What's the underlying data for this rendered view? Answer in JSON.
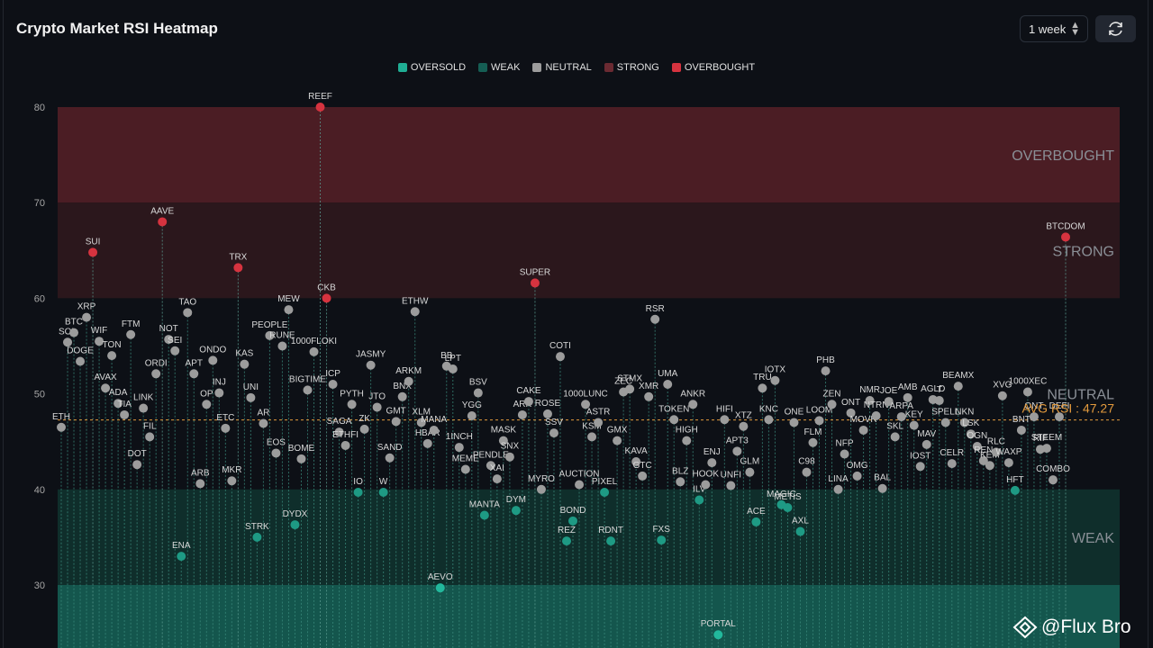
{
  "header": {
    "title": "Crypto Market RSI Heatmap",
    "period_value": "1 week"
  },
  "colors": {
    "background": "#0d1016",
    "oversold": "#1fae94",
    "weak": "#155e54",
    "neutral": "#9c9c9c",
    "strong": "#6b2a32",
    "overbought": "#d6333f",
    "avg_line": "#e39a3d"
  },
  "legend": [
    {
      "label": "OVERSOLD",
      "color": "#1fae94"
    },
    {
      "label": "WEAK",
      "color": "#155e54"
    },
    {
      "label": "NEUTRAL",
      "color": "#9c9c9c"
    },
    {
      "label": "STRONG",
      "color": "#6b2a32"
    },
    {
      "label": "OVERBOUGHT",
      "color": "#d6333f"
    }
  ],
  "watermark": "@Flux Bro",
  "chart_data": {
    "type": "scatter",
    "ylim": [
      24,
      82
    ],
    "y_ticks": [
      30,
      40,
      50,
      60,
      70,
      80
    ],
    "grid": false,
    "legend_position": "top-center",
    "zones": [
      {
        "label": "OVERBOUGHT",
        "from": 70,
        "to": 80
      },
      {
        "label": "STRONG",
        "from": 60,
        "to": 70
      },
      {
        "label": "NEUTRAL",
        "from": 40,
        "to": 60
      },
      {
        "label": "WEAK",
        "from": 30,
        "to": 40
      },
      {
        "label": "OVERSOLD",
        "from": 20,
        "to": 30
      }
    ],
    "avg_label": "AVG RSI : 47.27",
    "avg_value": 47.27,
    "points": [
      {
        "label": "ETH",
        "x": 1,
        "y": 46.5
      },
      {
        "label": "SOL",
        "x": 2,
        "y": 55.4
      },
      {
        "label": "BTC",
        "x": 3,
        "y": 56.4
      },
      {
        "label": "DOGE",
        "x": 4,
        "y": 53.4
      },
      {
        "label": "XRP",
        "x": 5,
        "y": 58.0
      },
      {
        "label": "SUI",
        "x": 6,
        "y": 64.8
      },
      {
        "label": "WIF",
        "x": 7,
        "y": 55.5
      },
      {
        "label": "AVAX",
        "x": 8,
        "y": 50.6
      },
      {
        "label": "TON",
        "x": 9,
        "y": 54.0
      },
      {
        "label": "ADA",
        "x": 10,
        "y": 49.0
      },
      {
        "label": "TIA",
        "x": 11,
        "y": 47.8
      },
      {
        "label": "FTM",
        "x": 12,
        "y": 56.2
      },
      {
        "label": "DOT",
        "x": 13,
        "y": 42.6
      },
      {
        "label": "LINK",
        "x": 14,
        "y": 48.5
      },
      {
        "label": "FIL",
        "x": 15,
        "y": 45.5
      },
      {
        "label": "ORDI",
        "x": 16,
        "y": 52.1
      },
      {
        "label": "AAVE",
        "x": 17,
        "y": 68.0
      },
      {
        "label": "NOT",
        "x": 18,
        "y": 55.7
      },
      {
        "label": "SEI",
        "x": 19,
        "y": 54.5
      },
      {
        "label": "ENA",
        "x": 20,
        "y": 33.0
      },
      {
        "label": "TAO",
        "x": 21,
        "y": 58.5
      },
      {
        "label": "APT",
        "x": 22,
        "y": 52.1
      },
      {
        "label": "ARB",
        "x": 23,
        "y": 40.6
      },
      {
        "label": "OP",
        "x": 24,
        "y": 48.9
      },
      {
        "label": "ONDO",
        "x": 25,
        "y": 53.5
      },
      {
        "label": "INJ",
        "x": 26,
        "y": 50.1
      },
      {
        "label": "ETC",
        "x": 27,
        "y": 46.4
      },
      {
        "label": "MKR",
        "x": 28,
        "y": 40.9
      },
      {
        "label": "TRX",
        "x": 29,
        "y": 63.2
      },
      {
        "label": "KAS",
        "x": 30,
        "y": 53.1
      },
      {
        "label": "UNI",
        "x": 31,
        "y": 49.6
      },
      {
        "label": "STRK",
        "x": 32,
        "y": 35.0
      },
      {
        "label": "AR",
        "x": 33,
        "y": 46.9
      },
      {
        "label": "PEOPLE",
        "x": 34,
        "y": 56.1
      },
      {
        "label": "EOS",
        "x": 35,
        "y": 43.8
      },
      {
        "label": "RUNE",
        "x": 36,
        "y": 55.0
      },
      {
        "label": "MEW",
        "x": 37,
        "y": 58.8
      },
      {
        "label": "DYDX",
        "x": 38,
        "y": 36.3
      },
      {
        "label": "BOME",
        "x": 39,
        "y": 43.2
      },
      {
        "label": "BIGTIME",
        "x": 40,
        "y": 50.4
      },
      {
        "label": "1000FLOKI",
        "x": 41,
        "y": 54.4
      },
      {
        "label": "REEF",
        "x": 42,
        "y": 80.0
      },
      {
        "label": "CKB",
        "x": 43,
        "y": 60.0
      },
      {
        "label": "ICP",
        "x": 44,
        "y": 51.0
      },
      {
        "label": "SAGA",
        "x": 45,
        "y": 46.0
      },
      {
        "label": "ETHFI",
        "x": 46,
        "y": 44.6
      },
      {
        "label": "PYTH",
        "x": 47,
        "y": 48.9
      },
      {
        "label": "IO",
        "x": 48,
        "y": 39.7
      },
      {
        "label": "ZK",
        "x": 49,
        "y": 46.3
      },
      {
        "label": "JASMY",
        "x": 50,
        "y": 53.0
      },
      {
        "label": "JTO",
        "x": 51,
        "y": 48.6
      },
      {
        "label": "W",
        "x": 52,
        "y": 39.7
      },
      {
        "label": "SAND",
        "x": 53,
        "y": 43.3
      },
      {
        "label": "GMT",
        "x": 54,
        "y": 47.1
      },
      {
        "label": "BNX",
        "x": 55,
        "y": 49.7
      },
      {
        "label": "ARKM",
        "x": 56,
        "y": 51.3
      },
      {
        "label": "ETHW",
        "x": 57,
        "y": 58.6
      },
      {
        "label": "XLM",
        "x": 58,
        "y": 47.0
      },
      {
        "label": "HBAR",
        "x": 59,
        "y": 44.8
      },
      {
        "label": "MANA",
        "x": 60,
        "y": 46.2
      },
      {
        "label": "AEVO",
        "x": 61,
        "y": 29.7
      },
      {
        "label": "BB",
        "x": 62,
        "y": 52.9
      },
      {
        "label": "LPT",
        "x": 63,
        "y": 52.6
      },
      {
        "label": "1INCH",
        "x": 64,
        "y": 44.4
      },
      {
        "label": "MEME",
        "x": 65,
        "y": 42.1
      },
      {
        "label": "YGG",
        "x": 66,
        "y": 47.7
      },
      {
        "label": "BSV",
        "x": 67,
        "y": 50.1
      },
      {
        "label": "MANTA",
        "x": 68,
        "y": 37.3
      },
      {
        "label": "PENDLE",
        "x": 69,
        "y": 42.5
      },
      {
        "label": "XAI",
        "x": 70,
        "y": 41.1
      },
      {
        "label": "MASK",
        "x": 71,
        "y": 45.1
      },
      {
        "label": "SNX",
        "x": 72,
        "y": 43.4
      },
      {
        "label": "DYM",
        "x": 73,
        "y": 37.8
      },
      {
        "label": "ARK",
        "x": 74,
        "y": 47.8
      },
      {
        "label": "CAKE",
        "x": 75,
        "y": 49.2
      },
      {
        "label": "SUPER",
        "x": 76,
        "y": 61.6
      },
      {
        "label": "MYRO",
        "x": 77,
        "y": 40.0
      },
      {
        "label": "ROSE",
        "x": 78,
        "y": 47.9
      },
      {
        "label": "SSV",
        "x": 79,
        "y": 45.9
      },
      {
        "label": "COTI",
        "x": 80,
        "y": 53.9
      },
      {
        "label": "REZ",
        "x": 81,
        "y": 34.6
      },
      {
        "label": "BOND",
        "x": 82,
        "y": 36.7
      },
      {
        "label": "AUCTION",
        "x": 83,
        "y": 40.5
      },
      {
        "label": "1000LUNC",
        "x": 84,
        "y": 48.9
      },
      {
        "label": "KSM",
        "x": 85,
        "y": 45.5
      },
      {
        "label": "ASTR",
        "x": 86,
        "y": 47.0
      },
      {
        "label": "PIXEL",
        "x": 87,
        "y": 39.7
      },
      {
        "label": "RDNT",
        "x": 88,
        "y": 34.6
      },
      {
        "label": "GMX",
        "x": 89,
        "y": 45.1
      },
      {
        "label": "ZEC",
        "x": 90,
        "y": 50.2
      },
      {
        "label": "STMX",
        "x": 91,
        "y": 50.5
      },
      {
        "label": "KAVA",
        "x": 92,
        "y": 42.9
      },
      {
        "label": "GTC",
        "x": 93,
        "y": 41.4
      },
      {
        "label": "XMR",
        "x": 94,
        "y": 49.7
      },
      {
        "label": "RSR",
        "x": 95,
        "y": 57.8
      },
      {
        "label": "FXS",
        "x": 96,
        "y": 34.7
      },
      {
        "label": "UMA",
        "x": 97,
        "y": 51.0
      },
      {
        "label": "TOKEN",
        "x": 98,
        "y": 47.3
      },
      {
        "label": "BLZ",
        "x": 99,
        "y": 40.8
      },
      {
        "label": "HIGH",
        "x": 100,
        "y": 45.1
      },
      {
        "label": "ANKR",
        "x": 101,
        "y": 48.9
      },
      {
        "label": "ILV",
        "x": 102,
        "y": 38.9
      },
      {
        "label": "HOOK",
        "x": 103,
        "y": 40.5
      },
      {
        "label": "ENJ",
        "x": 104,
        "y": 42.8
      },
      {
        "label": "PORTAL",
        "x": 105,
        "y": 24.8
      },
      {
        "label": "HIFI",
        "x": 106,
        "y": 47.3
      },
      {
        "label": "UNFI",
        "x": 107,
        "y": 40.4
      },
      {
        "label": "APT3",
        "x": 108,
        "y": 44.0
      },
      {
        "label": "XTZ",
        "x": 109,
        "y": 46.6
      },
      {
        "label": "GLM",
        "x": 110,
        "y": 41.8
      },
      {
        "label": "ACE",
        "x": 111,
        "y": 36.6
      },
      {
        "label": "TRU",
        "x": 112,
        "y": 50.6
      },
      {
        "label": "KNC",
        "x": 113,
        "y": 47.3
      },
      {
        "label": "IOTX",
        "x": 114,
        "y": 51.4
      },
      {
        "label": "MAGIC",
        "x": 115,
        "y": 38.4
      },
      {
        "label": "METIS",
        "x": 116,
        "y": 38.1
      },
      {
        "label": "ONE",
        "x": 117,
        "y": 47.0
      },
      {
        "label": "AXL",
        "x": 118,
        "y": 35.6
      },
      {
        "label": "C98",
        "x": 119,
        "y": 41.8
      },
      {
        "label": "FLM",
        "x": 120,
        "y": 44.9
      },
      {
        "label": "LOOM",
        "x": 121,
        "y": 47.2
      },
      {
        "label": "PHB",
        "x": 122,
        "y": 52.4
      },
      {
        "label": "ZEN",
        "x": 123,
        "y": 48.9
      },
      {
        "label": "LINA",
        "x": 124,
        "y": 40.0
      },
      {
        "label": "NFP",
        "x": 125,
        "y": 43.7
      },
      {
        "label": "ONT",
        "x": 126,
        "y": 48.0
      },
      {
        "label": "OMG",
        "x": 127,
        "y": 41.4
      },
      {
        "label": "MOVR",
        "x": 128,
        "y": 46.2
      },
      {
        "label": "NMR",
        "x": 129,
        "y": 49.3
      },
      {
        "label": "NTRN",
        "x": 130,
        "y": 47.7
      },
      {
        "label": "BAL",
        "x": 131,
        "y": 40.1
      },
      {
        "label": "JOE",
        "x": 132,
        "y": 49.2
      },
      {
        "label": "SKL",
        "x": 133,
        "y": 45.5
      },
      {
        "label": "ARPA",
        "x": 134,
        "y": 47.6
      },
      {
        "label": "AMB",
        "x": 135,
        "y": 49.6
      },
      {
        "label": "KEY",
        "x": 136,
        "y": 46.7
      },
      {
        "label": "IOST",
        "x": 137,
        "y": 42.4
      },
      {
        "label": "MAV",
        "x": 138,
        "y": 44.7
      },
      {
        "label": "AGLD",
        "x": 139,
        "y": 49.4
      },
      {
        "label": "T",
        "x": 140,
        "y": 49.3
      },
      {
        "label": "SPELL",
        "x": 141,
        "y": 47.0
      },
      {
        "label": "CELR",
        "x": 142,
        "y": 42.7
      },
      {
        "label": "BEAMX",
        "x": 143,
        "y": 50.8
      },
      {
        "label": "NKN",
        "x": 144,
        "y": 47.0
      },
      {
        "label": "LSK",
        "x": 145,
        "y": 45.8
      },
      {
        "label": "OGN",
        "x": 146,
        "y": 44.5
      },
      {
        "label": "REN",
        "x": 147,
        "y": 43.0
      },
      {
        "label": "KEM",
        "x": 148,
        "y": 42.5
      },
      {
        "label": "RLC",
        "x": 149,
        "y": 43.9
      },
      {
        "label": "XVG",
        "x": 150,
        "y": 49.8
      },
      {
        "label": "WAXP",
        "x": 151,
        "y": 42.8
      },
      {
        "label": "HFT",
        "x": 152,
        "y": 39.9
      },
      {
        "label": "BNT",
        "x": 153,
        "y": 46.2
      },
      {
        "label": "1000XEC",
        "x": 154,
        "y": 50.2
      },
      {
        "label": "QNT",
        "x": 155,
        "y": 47.6
      },
      {
        "label": "RIF",
        "x": 156,
        "y": 44.2
      },
      {
        "label": "STEEM",
        "x": 157,
        "y": 44.3
      },
      {
        "label": "COMBO",
        "x": 158,
        "y": 41.0
      },
      {
        "label": "DEFI",
        "x": 159,
        "y": 47.6
      },
      {
        "label": "BTCDOM",
        "x": 160,
        "y": 66.4
      }
    ]
  }
}
